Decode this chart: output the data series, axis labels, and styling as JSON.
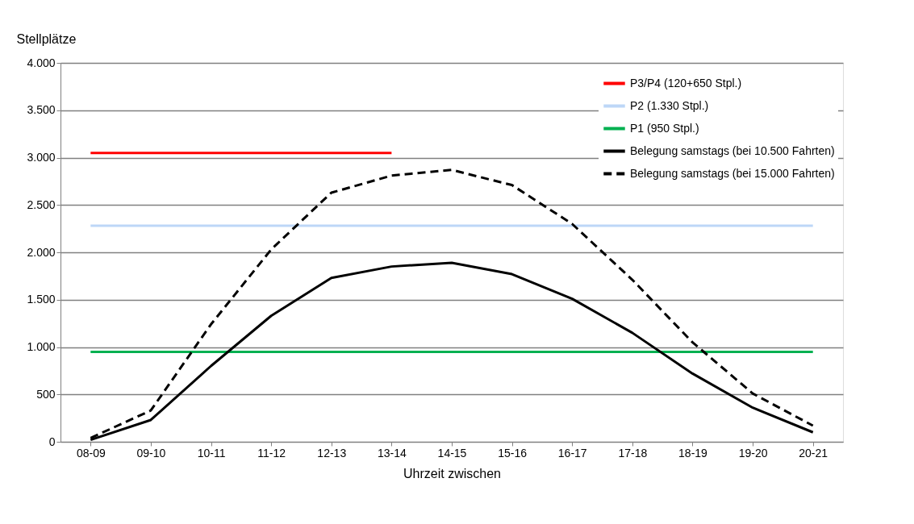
{
  "chart_data": {
    "type": "line",
    "xlabel": "Uhrzeit zwischen",
    "ylabel": "Stellplätze",
    "categories": [
      "08-09",
      "09-10",
      "10-11",
      "11-12",
      "12-13",
      "13-14",
      "14-15",
      "15-16",
      "16-17",
      "17-18",
      "18-19",
      "19-20",
      "20-21"
    ],
    "series": [
      {
        "name": "P3/P4 (120+650 Stpl.)",
        "color": "#ff0000",
        "line_style": "solid",
        "values": [
          3050,
          3050,
          3050,
          3050,
          3050,
          3050,
          null,
          null,
          null,
          null,
          null,
          null,
          null
        ]
      },
      {
        "name": "P2 (1.330 Stpl.)",
        "color": "#bdd7f7",
        "line_style": "solid",
        "values": [
          2280,
          2280,
          2280,
          2280,
          2280,
          2280,
          2280,
          2280,
          2280,
          2280,
          2280,
          2280,
          2280
        ]
      },
      {
        "name": "P1 (950 Stpl.)",
        "color": "#00b050",
        "line_style": "solid",
        "values": [
          950,
          950,
          950,
          950,
          950,
          950,
          950,
          950,
          950,
          950,
          950,
          950,
          950
        ]
      },
      {
        "name": "Belegung samstags (bei 10.500 Fahrten)",
        "color": "#000000",
        "line_style": "solid",
        "values": [
          20,
          230,
          800,
          1330,
          1730,
          1850,
          1890,
          1770,
          1510,
          1150,
          720,
          360,
          100
        ]
      },
      {
        "name": "Belegung samstags (bei 15.000 Fahrten)",
        "color": "#000000",
        "line_style": "dashed",
        "values": [
          40,
          330,
          1240,
          2030,
          2630,
          2810,
          2870,
          2710,
          2300,
          1710,
          1050,
          510,
          170
        ]
      }
    ],
    "ylim": [
      0,
      4000
    ],
    "yticks": [
      0,
      500,
      {
        "value": 1000,
        "label": "1.000"
      },
      {
        "value": 1500,
        "label": "1.500"
      },
      {
        "value": 2000,
        "label": "2.000"
      },
      {
        "value": 2500,
        "label": "2.500"
      },
      {
        "value": 3000,
        "label": "3.000"
      },
      {
        "value": 3500,
        "label": "3.500"
      },
      {
        "value": 4000,
        "label": "4.000"
      }
    ],
    "grid": "y",
    "legend": "top right",
    "marker": "none"
  }
}
